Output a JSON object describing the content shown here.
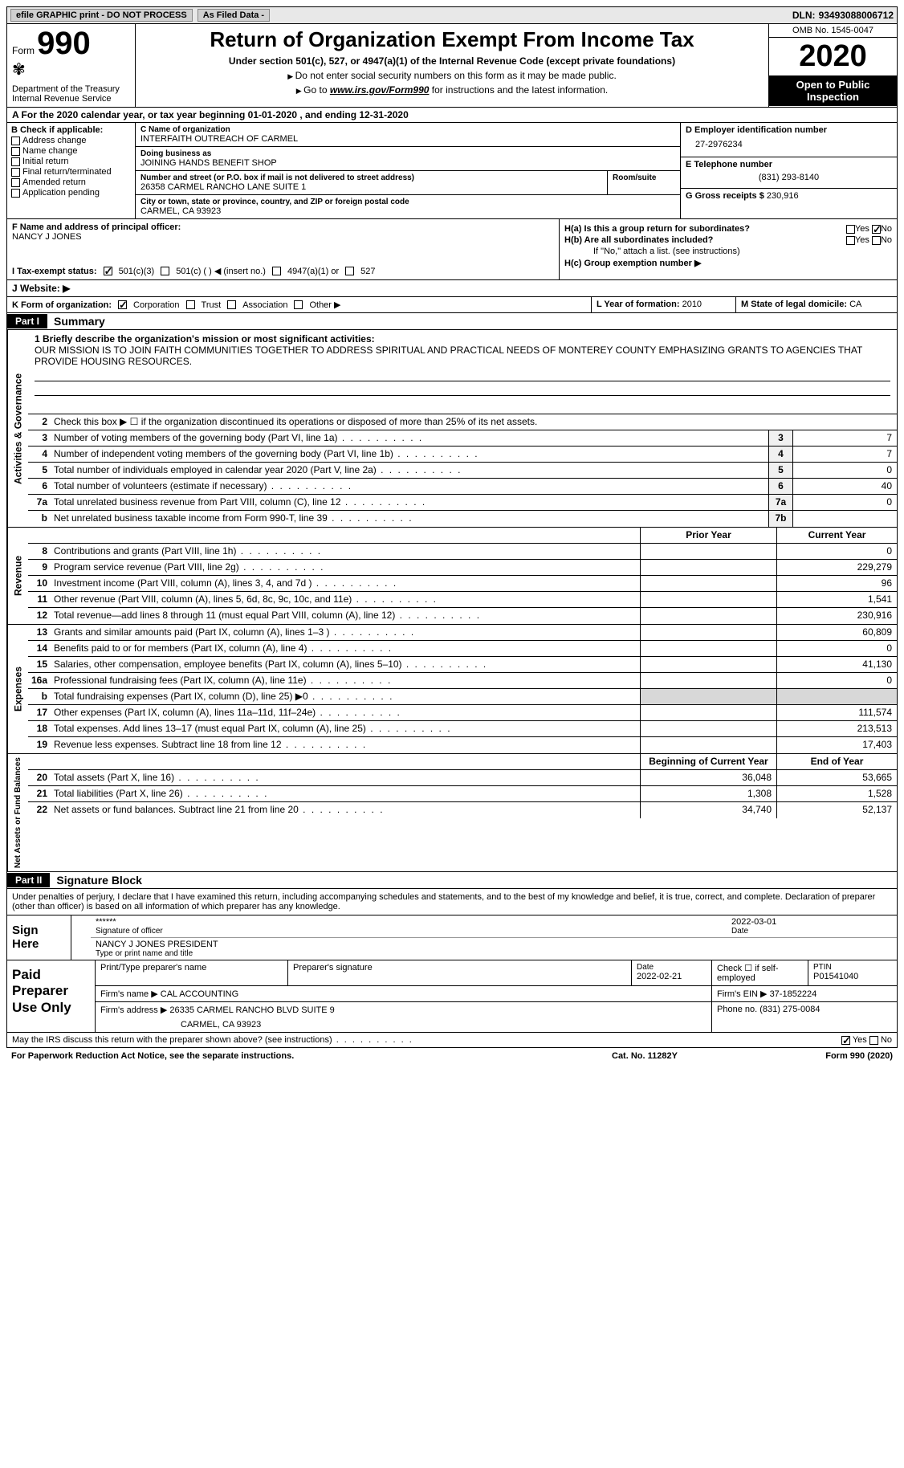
{
  "topbar": {
    "efile": "efile GRAPHIC print - DO NOT PROCESS",
    "asfiled": "As Filed Data -",
    "dln_label": "DLN:",
    "dln": "93493088006712"
  },
  "header": {
    "form_label": "Form",
    "form_no": "990",
    "dept": "Department of the Treasury\nInternal Revenue Service",
    "title": "Return of Organization Exempt From Income Tax",
    "sub": "Under section 501(c), 527, or 4947(a)(1) of the Internal Revenue Code (except private foundations)",
    "sub2a": "Do not enter social security numbers on this form as it may be made public.",
    "sub2b_pre": "Go to ",
    "sub2b_link": "www.irs.gov/Form990",
    "sub2b_post": " for instructions and the latest information.",
    "omb": "OMB No. 1545-0047",
    "year": "2020",
    "open": "Open to Public Inspection"
  },
  "rowA": "A   For the 2020 calendar year, or tax year beginning 01-01-2020   , and ending 12-31-2020",
  "B": {
    "label": "B Check if applicable:",
    "items": [
      "Address change",
      "Name change",
      "Initial return",
      "Final return/terminated",
      "Amended return",
      "Application pending"
    ]
  },
  "C": {
    "name_label": "C Name of organization",
    "name": "INTERFAITH OUTREACH OF CARMEL",
    "dba_label": "Doing business as",
    "dba": "JOINING HANDS BENEFIT SHOP",
    "addr_label": "Number and street (or P.O. box if mail is not delivered to street address)",
    "addr": "26358 CARMEL RANCHO LANE SUITE 1",
    "room_label": "Room/suite",
    "city_label": "City or town, state or province, country, and ZIP or foreign postal code",
    "city": "CARMEL, CA  93923"
  },
  "D": {
    "ein_label": "D Employer identification number",
    "ein": "27-2976234",
    "tel_label": "E Telephone number",
    "tel": "(831) 293-8140",
    "gross_label": "G Gross receipts $",
    "gross": "230,916"
  },
  "F": {
    "label": "F  Name and address of principal officer:",
    "name": "NANCY J JONES"
  },
  "H": {
    "a": "H(a)  Is this a group return for subordinates?",
    "b": "H(b)  Are all subordinates included?",
    "b_note": "If \"No,\" attach a list. (see instructions)",
    "c": "H(c)  Group exemption number ▶",
    "yes": "Yes",
    "no": "No"
  },
  "I": {
    "label": "I   Tax-exempt status:",
    "opts": [
      "501(c)(3)",
      "501(c) (  ) ◀ (insert no.)",
      "4947(a)(1) or",
      "527"
    ]
  },
  "J": {
    "label": "J   Website: ▶"
  },
  "K": {
    "label": "K Form of organization:",
    "opts": [
      "Corporation",
      "Trust",
      "Association",
      "Other ▶"
    ]
  },
  "L": {
    "label": "L Year of formation:",
    "val": "2010"
  },
  "M": {
    "label": "M State of legal domicile:",
    "val": "CA"
  },
  "partI": {
    "tag": "Part I",
    "title": "Summary"
  },
  "mission": {
    "label": "1  Briefly describe the organization's mission or most significant activities:",
    "text": "OUR MISSION IS TO JOIN FAITH COMMUNITIES TOGETHER TO ADDRESS SPIRITUAL AND PRACTICAL NEEDS OF MONTEREY COUNTY EMPHASIZING GRANTS TO AGENCIES THAT PROVIDE HOUSING RESOURCES."
  },
  "gov": {
    "l2": "Check this box ▶ ☐  if the organization discontinued its operations or disposed of more than 25% of its net assets.",
    "rows": [
      {
        "n": "3",
        "d": "Number of voting members of the governing body (Part VI, line 1a)",
        "box": "3",
        "v": "7"
      },
      {
        "n": "4",
        "d": "Number of independent voting members of the governing body (Part VI, line 1b)",
        "box": "4",
        "v": "7"
      },
      {
        "n": "5",
        "d": "Total number of individuals employed in calendar year 2020 (Part V, line 2a)",
        "box": "5",
        "v": "0"
      },
      {
        "n": "6",
        "d": "Total number of volunteers (estimate if necessary)",
        "box": "6",
        "v": "40"
      },
      {
        "n": "7a",
        "d": "Total unrelated business revenue from Part VIII, column (C), line 12",
        "box": "7a",
        "v": "0"
      },
      {
        "n": "b",
        "d": "Net unrelated business taxable income from Form 990-T, line 39",
        "box": "7b",
        "v": ""
      }
    ]
  },
  "cols": {
    "prior": "Prior Year",
    "curr": "Current Year"
  },
  "revenue": [
    {
      "n": "8",
      "d": "Contributions and grants (Part VIII, line 1h)",
      "p": "",
      "c": "0"
    },
    {
      "n": "9",
      "d": "Program service revenue (Part VIII, line 2g)",
      "p": "",
      "c": "229,279"
    },
    {
      "n": "10",
      "d": "Investment income (Part VIII, column (A), lines 3, 4, and 7d )",
      "p": "",
      "c": "96"
    },
    {
      "n": "11",
      "d": "Other revenue (Part VIII, column (A), lines 5, 6d, 8c, 9c, 10c, and 11e)",
      "p": "",
      "c": "1,541"
    },
    {
      "n": "12",
      "d": "Total revenue—add lines 8 through 11 (must equal Part VIII, column (A), line 12)",
      "p": "",
      "c": "230,916"
    }
  ],
  "expenses": [
    {
      "n": "13",
      "d": "Grants and similar amounts paid (Part IX, column (A), lines 1–3 )",
      "p": "",
      "c": "60,809"
    },
    {
      "n": "14",
      "d": "Benefits paid to or for members (Part IX, column (A), line 4)",
      "p": "",
      "c": "0"
    },
    {
      "n": "15",
      "d": "Salaries, other compensation, employee benefits (Part IX, column (A), lines 5–10)",
      "p": "",
      "c": "41,130"
    },
    {
      "n": "16a",
      "d": "Professional fundraising fees (Part IX, column (A), line 11e)",
      "p": "",
      "c": "0"
    },
    {
      "n": "b",
      "d": "Total fundraising expenses (Part IX, column (D), line 25) ▶0",
      "p": "shaded",
      "c": "shaded"
    },
    {
      "n": "17",
      "d": "Other expenses (Part IX, column (A), lines 11a–11d, 11f–24e)",
      "p": "",
      "c": "111,574"
    },
    {
      "n": "18",
      "d": "Total expenses. Add lines 13–17 (must equal Part IX, column (A), line 25)",
      "p": "",
      "c": "213,513"
    },
    {
      "n": "19",
      "d": "Revenue less expenses. Subtract line 18 from line 12",
      "p": "",
      "c": "17,403"
    }
  ],
  "netcols": {
    "beg": "Beginning of Current Year",
    "end": "End of Year"
  },
  "net": [
    {
      "n": "20",
      "d": "Total assets (Part X, line 16)",
      "p": "36,048",
      "c": "53,665"
    },
    {
      "n": "21",
      "d": "Total liabilities (Part X, line 26)",
      "p": "1,308",
      "c": "1,528"
    },
    {
      "n": "22",
      "d": "Net assets or fund balances. Subtract line 21 from line 20",
      "p": "34,740",
      "c": "52,137"
    }
  ],
  "partII": {
    "tag": "Part II",
    "title": "Signature Block"
  },
  "sig": {
    "text": "Under penalties of perjury, I declare that I have examined this return, including accompanying schedules and statements, and to the best of my knowledge and belief, it is true, correct, and complete. Declaration of preparer (other than officer) is based on all information of which preparer has any knowledge.",
    "sign_here": "Sign Here",
    "stars": "******",
    "sig_officer": "Signature of officer",
    "date": "2022-03-01",
    "date_label": "Date",
    "name_title": "NANCY J JONES  PRESIDENT",
    "name_label": "Type or print name and title"
  },
  "prep": {
    "label": "Paid Preparer Use Only",
    "h1": "Print/Type preparer's name",
    "h2": "Preparer's signature",
    "h3_label": "Date",
    "h3": "2022-02-21",
    "h4": "Check ☐  if self-employed",
    "h5_label": "PTIN",
    "h5": "P01541040",
    "firm_label": "Firm's name   ▶",
    "firm": "CAL ACCOUNTING",
    "ein_label": "Firm's EIN ▶",
    "ein": "37-1852224",
    "addr_label": "Firm's address ▶",
    "addr": "26335 CARMEL RANCHO BLVD SUITE 9",
    "addr2": "CARMEL, CA  93923",
    "phone_label": "Phone no.",
    "phone": "(831) 275-0084"
  },
  "discuss": {
    "q": "May the IRS discuss this return with the preparer shown above? (see instructions)",
    "yes": "Yes",
    "no": "No"
  },
  "bottom": {
    "l": "For Paperwork Reduction Act Notice, see the separate instructions.",
    "m": "Cat. No. 11282Y",
    "r": "Form 990 (2020)"
  },
  "tabs": {
    "gov": "Activities & Governance",
    "rev": "Revenue",
    "exp": "Expenses",
    "net": "Net Assets or Fund Balances"
  }
}
